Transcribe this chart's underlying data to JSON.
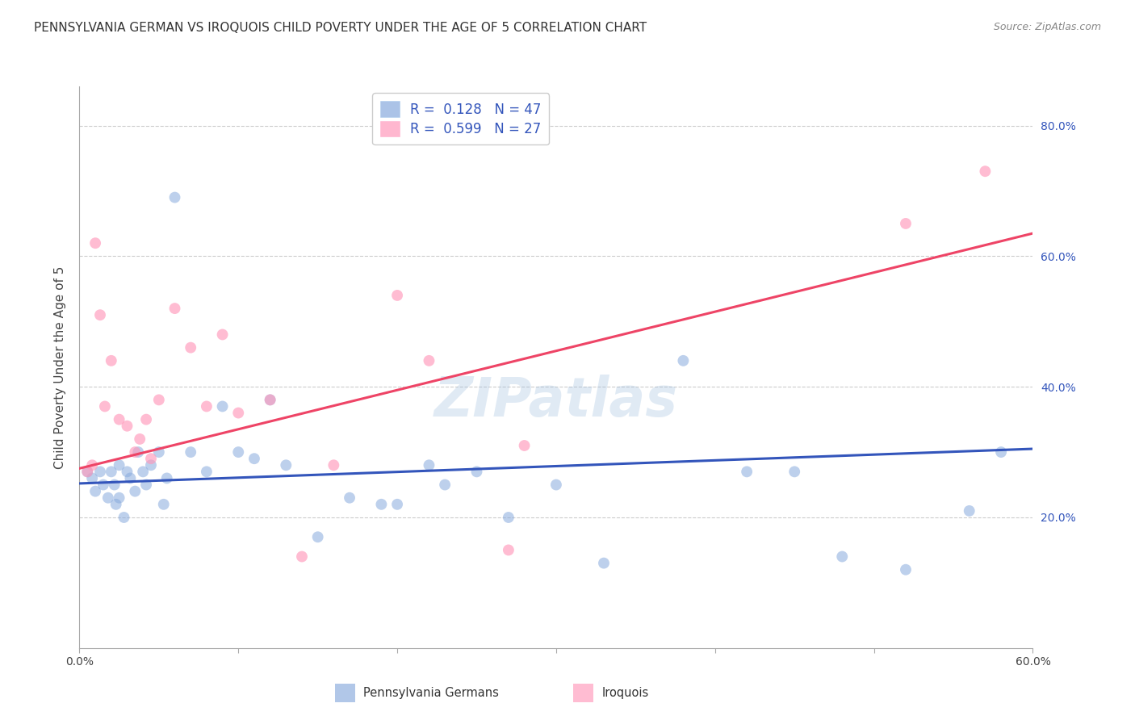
{
  "title": "PENNSYLVANIA GERMAN VS IROQUOIS CHILD POVERTY UNDER THE AGE OF 5 CORRELATION CHART",
  "source": "Source: ZipAtlas.com",
  "ylabel": "Child Poverty Under the Age of 5",
  "xlim": [
    0.0,
    0.6
  ],
  "ylim": [
    0.0,
    0.86
  ],
  "yticks": [
    0.2,
    0.4,
    0.6,
    0.8
  ],
  "ytick_labels": [
    "20.0%",
    "40.0%",
    "60.0%",
    "80.0%"
  ],
  "xtick_labels": [
    "0.0%",
    "",
    "",
    "",
    "",
    "",
    "60.0%"
  ],
  "legend_labels": [
    "Pennsylvania Germans",
    "Iroquois"
  ],
  "legend_r": [
    "0.128",
    "0.599"
  ],
  "legend_n": [
    "47",
    "27"
  ],
  "blue_color": "#88AADD",
  "pink_color": "#FF99BB",
  "blue_line_color": "#3355BB",
  "pink_line_color": "#EE4466",
  "watermark": "ZIPatlas",
  "blue_scatter_x": [
    0.005,
    0.008,
    0.01,
    0.013,
    0.015,
    0.018,
    0.02,
    0.022,
    0.023,
    0.025,
    0.025,
    0.028,
    0.03,
    0.032,
    0.035,
    0.037,
    0.04,
    0.042,
    0.045,
    0.05,
    0.053,
    0.055,
    0.06,
    0.07,
    0.08,
    0.09,
    0.1,
    0.11,
    0.12,
    0.13,
    0.15,
    0.17,
    0.19,
    0.2,
    0.22,
    0.23,
    0.25,
    0.27,
    0.3,
    0.33,
    0.38,
    0.42,
    0.45,
    0.48,
    0.52,
    0.56,
    0.58
  ],
  "blue_scatter_y": [
    0.27,
    0.26,
    0.24,
    0.27,
    0.25,
    0.23,
    0.27,
    0.25,
    0.22,
    0.28,
    0.23,
    0.2,
    0.27,
    0.26,
    0.24,
    0.3,
    0.27,
    0.25,
    0.28,
    0.3,
    0.22,
    0.26,
    0.69,
    0.3,
    0.27,
    0.37,
    0.3,
    0.29,
    0.38,
    0.28,
    0.17,
    0.23,
    0.22,
    0.22,
    0.28,
    0.25,
    0.27,
    0.2,
    0.25,
    0.13,
    0.44,
    0.27,
    0.27,
    0.14,
    0.12,
    0.21,
    0.3
  ],
  "pink_scatter_x": [
    0.005,
    0.008,
    0.01,
    0.013,
    0.016,
    0.02,
    0.025,
    0.03,
    0.035,
    0.038,
    0.042,
    0.045,
    0.05,
    0.06,
    0.07,
    0.08,
    0.09,
    0.1,
    0.12,
    0.14,
    0.16,
    0.2,
    0.22,
    0.27,
    0.28,
    0.52,
    0.57
  ],
  "pink_scatter_y": [
    0.27,
    0.28,
    0.62,
    0.51,
    0.37,
    0.44,
    0.35,
    0.34,
    0.3,
    0.32,
    0.35,
    0.29,
    0.38,
    0.52,
    0.46,
    0.37,
    0.48,
    0.36,
    0.38,
    0.14,
    0.28,
    0.54,
    0.44,
    0.15,
    0.31,
    0.65,
    0.73
  ],
  "blue_trendline_x": [
    0.0,
    0.6
  ],
  "blue_trendline_y": [
    0.252,
    0.305
  ],
  "pink_trendline_x": [
    0.0,
    0.6
  ],
  "pink_trendline_y": [
    0.275,
    0.635
  ],
  "background_color": "#ffffff",
  "grid_color": "#cccccc",
  "title_fontsize": 11,
  "axis_label_fontsize": 11,
  "tick_fontsize": 10,
  "marker_size": 100
}
